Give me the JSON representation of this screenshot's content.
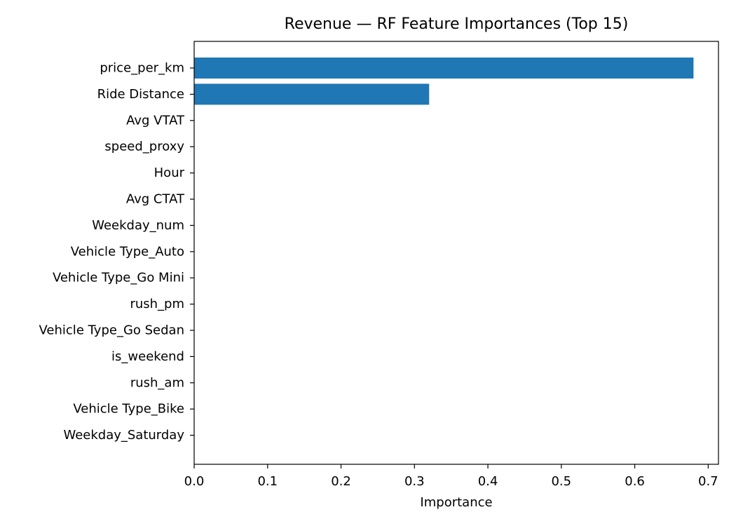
{
  "chart_data": {
    "type": "bar",
    "orientation": "horizontal",
    "title": "Revenue — RF Feature Importances (Top 15)",
    "xlabel": "Importance",
    "ylabel": "",
    "xlim": [
      0,
      0.714
    ],
    "xticks": [
      "0.0",
      "0.1",
      "0.2",
      "0.3",
      "0.4",
      "0.5",
      "0.6",
      "0.7"
    ],
    "categories": [
      "price_per_km",
      "Ride Distance",
      "Avg VTAT",
      "speed_proxy",
      "Hour",
      "Avg CTAT",
      "Weekday_num",
      "Vehicle Type_Auto",
      "Vehicle Type_Go Mini",
      "rush_pm",
      "Vehicle Type_Go Sedan",
      "is_weekend",
      "rush_am",
      "Vehicle Type_Bike",
      "Weekday_Saturday"
    ],
    "values": [
      0.68,
      0.32,
      0.0002,
      0.0002,
      0.0001,
      0.0001,
      0.0001,
      0.0001,
      0.0001,
      5e-05,
      5e-05,
      5e-05,
      5e-05,
      3e-05,
      2e-05
    ],
    "grid": false,
    "legend": "none",
    "bar_color": "#1f77b4"
  }
}
